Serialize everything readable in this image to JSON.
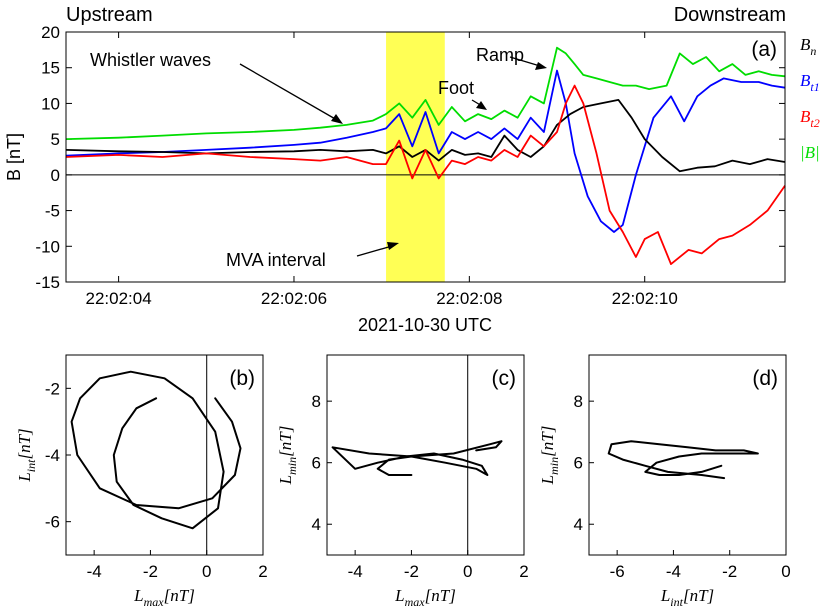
{
  "header": {
    "upstream": "Upstream",
    "downstream": "Downstream"
  },
  "panel_a": {
    "label": "(a)",
    "ylabel": "B [nT]",
    "xlabel": "2021-10-30 UTC",
    "legend": [
      {
        "name": "B_n",
        "base": "B",
        "sub": "n",
        "color": "#000000"
      },
      {
        "name": "B_t1",
        "base": "B",
        "sub": "t1",
        "color": "#0000ff"
      },
      {
        "name": "B_t2",
        "base": "B",
        "sub": "t2",
        "color": "#ff0000"
      },
      {
        "name": "|B|",
        "base": "|B|",
        "sub": "",
        "color": "#00dd00"
      }
    ],
    "annotations": {
      "whistler": "Whistler waves",
      "ramp": "Ramp",
      "foot": "Foot",
      "mva": "MVA interval"
    },
    "highlight_color": "#ffff55"
  },
  "chart_data": [
    {
      "type": "line",
      "title": "(a)",
      "xlabel": "2021-10-30 UTC",
      "ylabel": "B [nT]",
      "xlim": [
        3.4,
        11.6
      ],
      "ylim": [
        -15,
        20
      ],
      "x_ticks": [
        4,
        6,
        8,
        10
      ],
      "x_tick_labels": [
        "22:02:04",
        "22:02:06",
        "22:02:08",
        "22:02:10"
      ],
      "y_ticks": [
        -15,
        -10,
        -5,
        0,
        5,
        10,
        15,
        20
      ],
      "mva_interval": [
        7.05,
        7.72
      ],
      "series": [
        {
          "name": "|B|",
          "color": "#00dd00",
          "x": [
            3.4,
            4.0,
            4.5,
            5.0,
            5.5,
            6.0,
            6.3,
            6.6,
            6.9,
            7.05,
            7.2,
            7.35,
            7.5,
            7.65,
            7.8,
            7.95,
            8.1,
            8.25,
            8.4,
            8.55,
            8.7,
            8.85,
            9.0,
            9.1,
            9.2,
            9.3,
            9.45,
            9.6,
            9.75,
            9.9,
            10.05,
            10.25,
            10.4,
            10.55,
            10.7,
            10.85,
            11.0,
            11.15,
            11.3,
            11.45,
            11.6
          ],
          "y": [
            5.0,
            5.2,
            5.5,
            5.8,
            6.0,
            6.3,
            6.6,
            7.0,
            7.6,
            8.5,
            10.0,
            8.0,
            10.5,
            7.0,
            9.5,
            7.5,
            8.5,
            7.8,
            9.0,
            8.0,
            11.0,
            10.0,
            17.8,
            17.0,
            15.5,
            14.0,
            13.5,
            13.0,
            12.5,
            12.5,
            12.0,
            12.5,
            17.0,
            15.5,
            16.5,
            14.5,
            15.5,
            14.0,
            14.5,
            14.0,
            13.8
          ]
        },
        {
          "name": "B_t1",
          "color": "#0000ff",
          "x": [
            3.4,
            4.0,
            4.5,
            5.0,
            5.5,
            6.0,
            6.3,
            6.6,
            6.9,
            7.05,
            7.2,
            7.35,
            7.5,
            7.65,
            7.8,
            7.95,
            8.1,
            8.25,
            8.4,
            8.55,
            8.7,
            8.85,
            9.0,
            9.1,
            9.2,
            9.35,
            9.5,
            9.65,
            9.75,
            9.9,
            10.1,
            10.3,
            10.45,
            10.6,
            10.75,
            10.9,
            11.1,
            11.3,
            11.45,
            11.6
          ],
          "y": [
            2.7,
            3.0,
            3.2,
            3.5,
            3.8,
            4.2,
            4.5,
            5.2,
            6.0,
            6.5,
            8.5,
            4.0,
            8.8,
            3.0,
            6.0,
            5.0,
            6.0,
            5.0,
            6.5,
            5.0,
            8.0,
            6.0,
            14.6,
            10.0,
            3.0,
            -3.0,
            -6.5,
            -8.0,
            -7.0,
            0.0,
            8.0,
            11.0,
            7.5,
            11.0,
            12.5,
            13.5,
            13.0,
            13.0,
            12.5,
            12.2
          ]
        },
        {
          "name": "B_n",
          "color": "#000000",
          "x": [
            3.4,
            4.0,
            4.5,
            5.0,
            5.5,
            6.0,
            6.3,
            6.6,
            6.9,
            7.05,
            7.2,
            7.35,
            7.5,
            7.65,
            7.8,
            7.95,
            8.1,
            8.25,
            8.4,
            8.55,
            8.7,
            8.85,
            9.0,
            9.15,
            9.3,
            9.5,
            9.7,
            9.85,
            10.0,
            10.2,
            10.4,
            10.6,
            10.8,
            11.0,
            11.2,
            11.4,
            11.6
          ],
          "y": [
            3.5,
            3.3,
            3.2,
            3.0,
            3.2,
            3.3,
            3.5,
            3.3,
            3.5,
            3.0,
            4.0,
            2.5,
            3.5,
            2.0,
            3.5,
            2.8,
            3.0,
            2.5,
            5.5,
            3.5,
            2.5,
            4.0,
            7.0,
            8.5,
            9.5,
            10.0,
            10.5,
            8.0,
            5.0,
            2.5,
            0.5,
            1.0,
            1.2,
            2.0,
            1.5,
            2.2,
            1.8
          ]
        },
        {
          "name": "B_t2",
          "color": "#ff0000",
          "x": [
            3.4,
            4.0,
            4.5,
            5.0,
            5.5,
            6.0,
            6.3,
            6.6,
            6.9,
            7.05,
            7.2,
            7.35,
            7.5,
            7.65,
            7.8,
            7.95,
            8.1,
            8.25,
            8.4,
            8.55,
            8.7,
            8.85,
            9.0,
            9.1,
            9.2,
            9.3,
            9.45,
            9.6,
            9.75,
            9.9,
            10.0,
            10.15,
            10.3,
            10.5,
            10.65,
            10.85,
            11.0,
            11.2,
            11.4,
            11.6
          ],
          "y": [
            2.5,
            2.8,
            2.5,
            3.0,
            2.5,
            2.2,
            2.0,
            2.5,
            1.5,
            1.5,
            4.8,
            -0.5,
            3.5,
            -0.5,
            2.0,
            1.5,
            2.5,
            2.0,
            3.5,
            2.5,
            5.5,
            4.0,
            6.0,
            10.0,
            12.5,
            10.0,
            3.0,
            -5.0,
            -8.0,
            -11.5,
            -9.0,
            -8.0,
            -12.5,
            -10.5,
            -11.0,
            -9.0,
            -8.5,
            -7.0,
            -5.0,
            -1.5
          ]
        }
      ]
    },
    {
      "type": "line",
      "title": "(b)",
      "xlabel": "L_max[nT]",
      "ylabel": "L_int[nT]",
      "xlim": [
        -5,
        2
      ],
      "ylim": [
        -7,
        -1
      ],
      "x_ticks": [
        -4,
        -2,
        0,
        2
      ],
      "y_ticks": [
        -6,
        -4,
        -2
      ],
      "series": [
        {
          "name": "hodogram",
          "x": [
            -1.8,
            -2.5,
            -3.0,
            -3.3,
            -3.2,
            -2.6,
            -1.6,
            -0.5,
            0.4,
            0.6,
            0.3,
            -0.5,
            -1.5,
            -2.7,
            -3.8,
            -4.5,
            -4.8,
            -4.6,
            -3.8,
            -2.5,
            -1.0,
            0.2,
            1.0,
            1.2,
            0.9,
            0.3
          ],
          "y": [
            -2.3,
            -2.6,
            -3.2,
            -4.0,
            -4.8,
            -5.5,
            -5.9,
            -6.2,
            -5.6,
            -4.5,
            -3.3,
            -2.3,
            -1.7,
            -1.5,
            -1.7,
            -2.3,
            -3.0,
            -4.0,
            -5.0,
            -5.5,
            -5.6,
            -5.3,
            -4.6,
            -3.8,
            -3.0,
            -2.3
          ]
        }
      ]
    },
    {
      "type": "line",
      "title": "(c)",
      "xlabel": "L_max[nT]",
      "ylabel": "L_min[nT]",
      "xlim": [
        -5,
        2
      ],
      "ylim": [
        3,
        9.5
      ],
      "x_ticks": [
        -4,
        -2,
        0,
        2
      ],
      "y_ticks": [
        4,
        6,
        8
      ],
      "series": [
        {
          "name": "hodogram",
          "x": [
            -2.0,
            -2.8,
            -3.2,
            -2.8,
            -2.0,
            -0.8,
            0.3,
            0.7,
            0.5,
            -0.2,
            -1.2,
            -2.2,
            -3.2,
            -4.0,
            -4.8,
            -3.5,
            -2.0,
            -0.5,
            0.8,
            1.2,
            1.0,
            0.3
          ],
          "y": [
            5.6,
            5.6,
            5.8,
            6.1,
            6.2,
            6.0,
            5.8,
            5.6,
            5.9,
            6.1,
            6.3,
            6.2,
            6.0,
            5.8,
            6.5,
            6.3,
            6.2,
            6.3,
            6.6,
            6.7,
            6.5,
            6.4
          ]
        }
      ]
    },
    {
      "type": "line",
      "title": "(d)",
      "xlabel": "L_int[nT]",
      "ylabel": "L_min[nT]",
      "xlim": [
        -7,
        0
      ],
      "ylim": [
        3,
        9.5
      ],
      "x_ticks": [
        -6,
        -4,
        -2,
        0
      ],
      "y_ticks": [
        4,
        6,
        8
      ],
      "series": [
        {
          "name": "hodogram",
          "x": [
            -2.3,
            -3.0,
            -3.8,
            -4.5,
            -5.0,
            -4.6,
            -3.8,
            -3.0,
            -2.2,
            -1.5,
            -1.1,
            -1.0,
            -1.5,
            -2.5,
            -3.5,
            -4.5,
            -5.5,
            -6.2,
            -6.3,
            -5.8,
            -5.0,
            -4.2,
            -3.0,
            -2.2
          ],
          "y": [
            5.9,
            5.7,
            5.6,
            5.6,
            5.7,
            6.0,
            6.2,
            6.3,
            6.3,
            6.3,
            6.3,
            6.3,
            6.4,
            6.4,
            6.5,
            6.6,
            6.7,
            6.6,
            6.3,
            6.1,
            5.9,
            5.7,
            5.6,
            5.5
          ]
        }
      ]
    }
  ]
}
